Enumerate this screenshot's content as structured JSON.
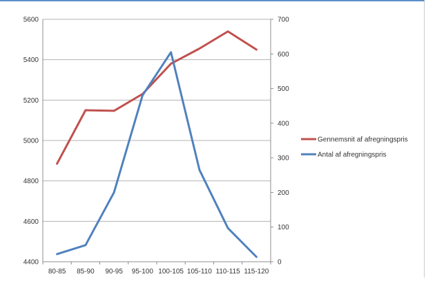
{
  "chart_data": {
    "type": "line",
    "title": "",
    "xlabel": "",
    "ylabel": "",
    "categories": [
      "80-85",
      "85-90",
      "90-95",
      "95-100",
      "100-105",
      "105-110",
      "110-115",
      "115-120"
    ],
    "y_left": {
      "range": [
        4400,
        5600
      ],
      "ticks": [
        4400,
        4600,
        4800,
        5000,
        5200,
        5400,
        5600
      ]
    },
    "y_right": {
      "range": [
        0,
        700
      ],
      "ticks": [
        0,
        100,
        200,
        300,
        400,
        500,
        600,
        700
      ]
    },
    "grid": true,
    "legend_position": "right",
    "series": [
      {
        "name": "Gennemsnit af afregningspris",
        "axis": "left",
        "color": "#c0504d",
        "values": [
          4885,
          5150,
          5147,
          5230,
          5380,
          5455,
          5540,
          5450
        ]
      },
      {
        "name": "Antal af afregningspris",
        "axis": "right",
        "color": "#4f81bd",
        "values": [
          22,
          48,
          200,
          480,
          605,
          265,
          97,
          14
        ]
      }
    ]
  }
}
